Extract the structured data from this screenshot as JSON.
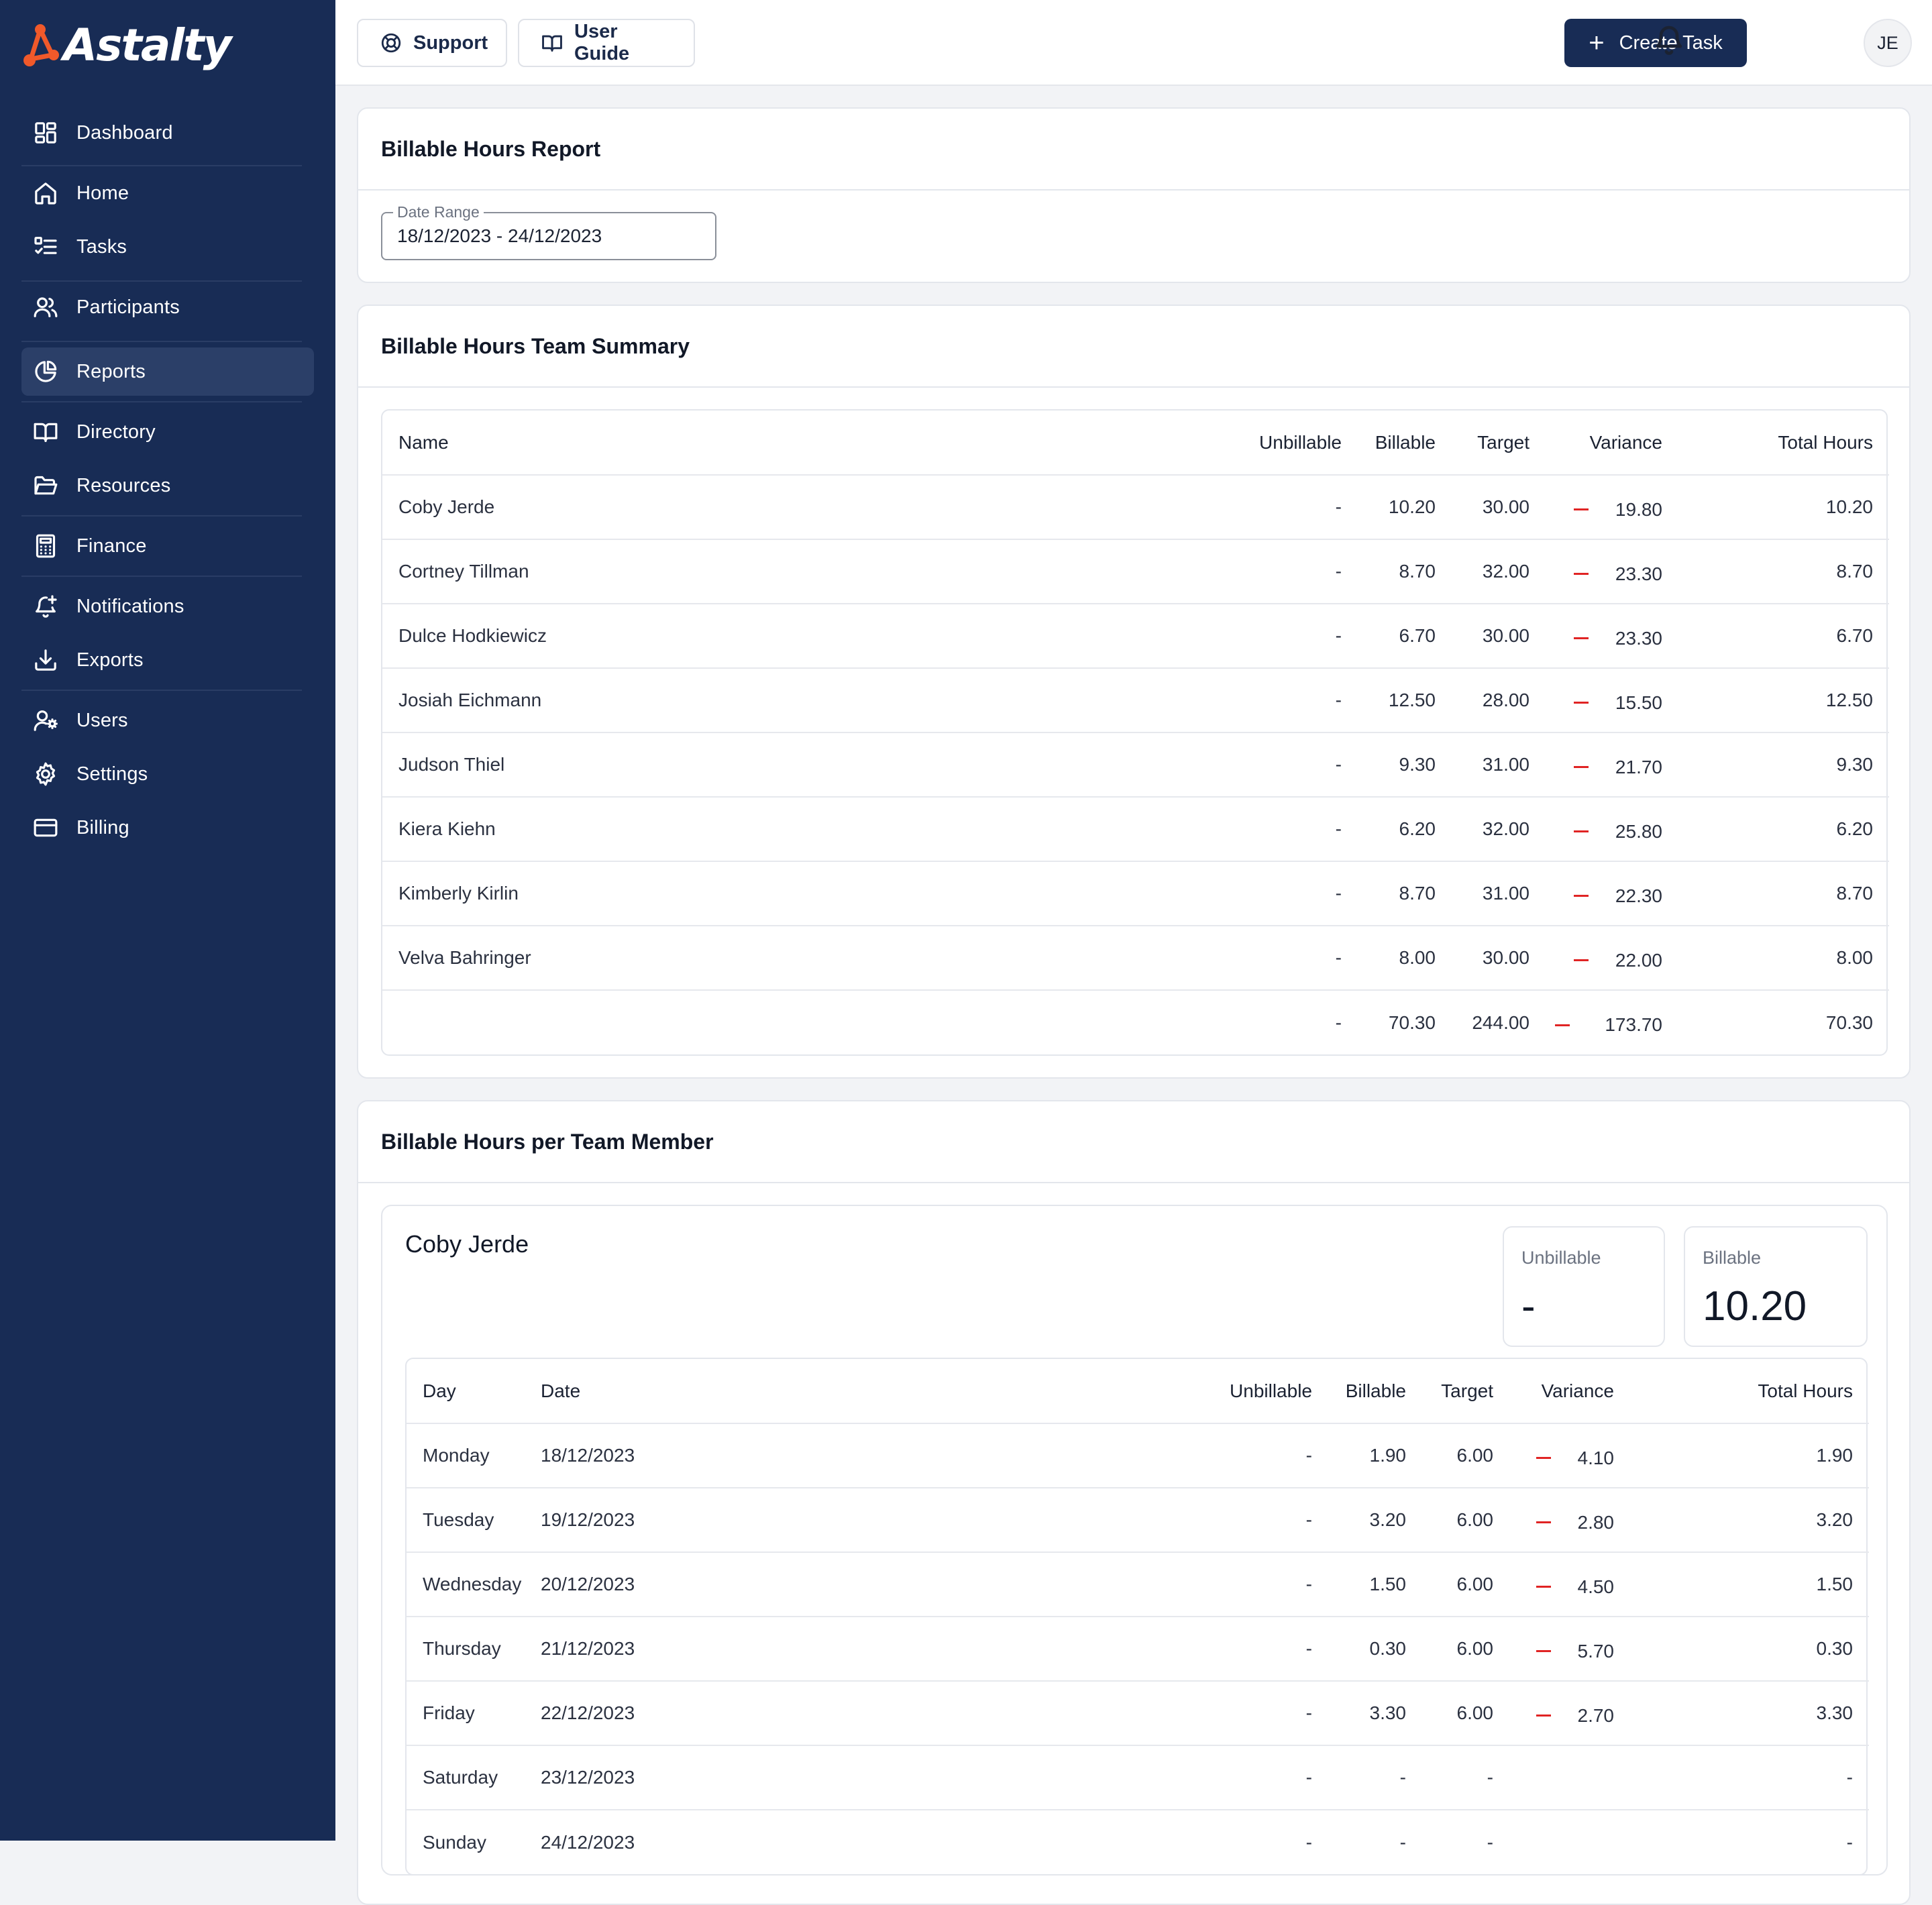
{
  "brand": {
    "name": "Astalty"
  },
  "nav": [
    {
      "label": "Dashboard",
      "icon": "grid-icon"
    },
    {
      "label": "Home",
      "icon": "home-icon"
    },
    {
      "label": "Tasks",
      "icon": "checklist-icon"
    },
    {
      "label": "Participants",
      "icon": "users-icon"
    },
    {
      "label": "Reports",
      "icon": "pie-chart-icon",
      "active": true
    },
    {
      "label": "Directory",
      "icon": "book-open-icon"
    },
    {
      "label": "Resources",
      "icon": "folder-open-icon"
    },
    {
      "label": "Finance",
      "icon": "calculator-icon"
    },
    {
      "label": "Notifications",
      "icon": "bell-plus-icon"
    },
    {
      "label": "Exports",
      "icon": "download-icon"
    },
    {
      "label": "Users",
      "icon": "user-cog-icon"
    },
    {
      "label": "Settings",
      "icon": "gear-icon"
    },
    {
      "label": "Billing",
      "icon": "credit-card-icon"
    }
  ],
  "topbar": {
    "support_label": "Support",
    "guide_label": "User Guide",
    "create_label": "Create Task",
    "avatar_initials": "JE"
  },
  "report": {
    "title": "Billable Hours Report",
    "date_range_label": "Date Range",
    "date_range_value": "18/12/2023 - 24/12/2023"
  },
  "summary": {
    "title": "Billable Hours Team Summary",
    "columns": [
      "Name",
      "Unbillable",
      "Billable",
      "Target",
      "Variance",
      "Total Hours"
    ],
    "rows": [
      [
        "Coby Jerde",
        "-",
        "10.20",
        "30.00",
        "19.80",
        "10.20"
      ],
      [
        "Cortney Tillman",
        "-",
        "8.70",
        "32.00",
        "23.30",
        "8.70"
      ],
      [
        "Dulce Hodkiewicz",
        "-",
        "6.70",
        "30.00",
        "23.30",
        "6.70"
      ],
      [
        "Josiah Eichmann",
        "-",
        "12.50",
        "28.00",
        "15.50",
        "12.50"
      ],
      [
        "Judson Thiel",
        "-",
        "9.30",
        "31.00",
        "21.70",
        "9.30"
      ],
      [
        "Kiera Kiehn",
        "-",
        "6.20",
        "32.00",
        "25.80",
        "6.20"
      ],
      [
        "Kimberly Kirlin",
        "-",
        "8.70",
        "31.00",
        "22.30",
        "8.70"
      ],
      [
        "Velva Bahringer",
        "-",
        "8.00",
        "30.00",
        "22.00",
        "8.00"
      ]
    ],
    "total": [
      "",
      "-",
      "70.30",
      "244.00",
      "173.70",
      "70.30"
    ]
  },
  "per_member": {
    "title": "Billable Hours per Team Member",
    "member_name": "Coby Jerde",
    "stats": [
      {
        "label": "Unbillable",
        "value": "-"
      },
      {
        "label": "Billable",
        "value": "10.20"
      }
    ],
    "columns": [
      "Day",
      "Date",
      "Unbillable",
      "Billable",
      "Target",
      "Variance",
      "Total Hours"
    ],
    "rows": [
      [
        "Monday",
        "18/12/2023",
        "-",
        "1.90",
        "6.00",
        "4.10",
        "1.90"
      ],
      [
        "Tuesday",
        "19/12/2023",
        "-",
        "3.20",
        "6.00",
        "2.80",
        "3.20"
      ],
      [
        "Wednesday",
        "20/12/2023",
        "-",
        "1.50",
        "6.00",
        "4.50",
        "1.50"
      ],
      [
        "Thursday",
        "21/12/2023",
        "-",
        "0.30",
        "6.00",
        "5.70",
        "0.30"
      ],
      [
        "Friday",
        "22/12/2023",
        "-",
        "3.30",
        "6.00",
        "2.70",
        "3.30"
      ],
      [
        "Saturday",
        "23/12/2023",
        "-",
        "-",
        "-",
        "",
        "-"
      ],
      [
        "Sunday",
        "24/12/2023",
        "-",
        "-",
        "-",
        "",
        "-"
      ]
    ]
  },
  "colors": {
    "sidebar": "#182c55",
    "accent": "#182c55",
    "negative": "#e02424",
    "logo_orange": "#f0592a"
  }
}
